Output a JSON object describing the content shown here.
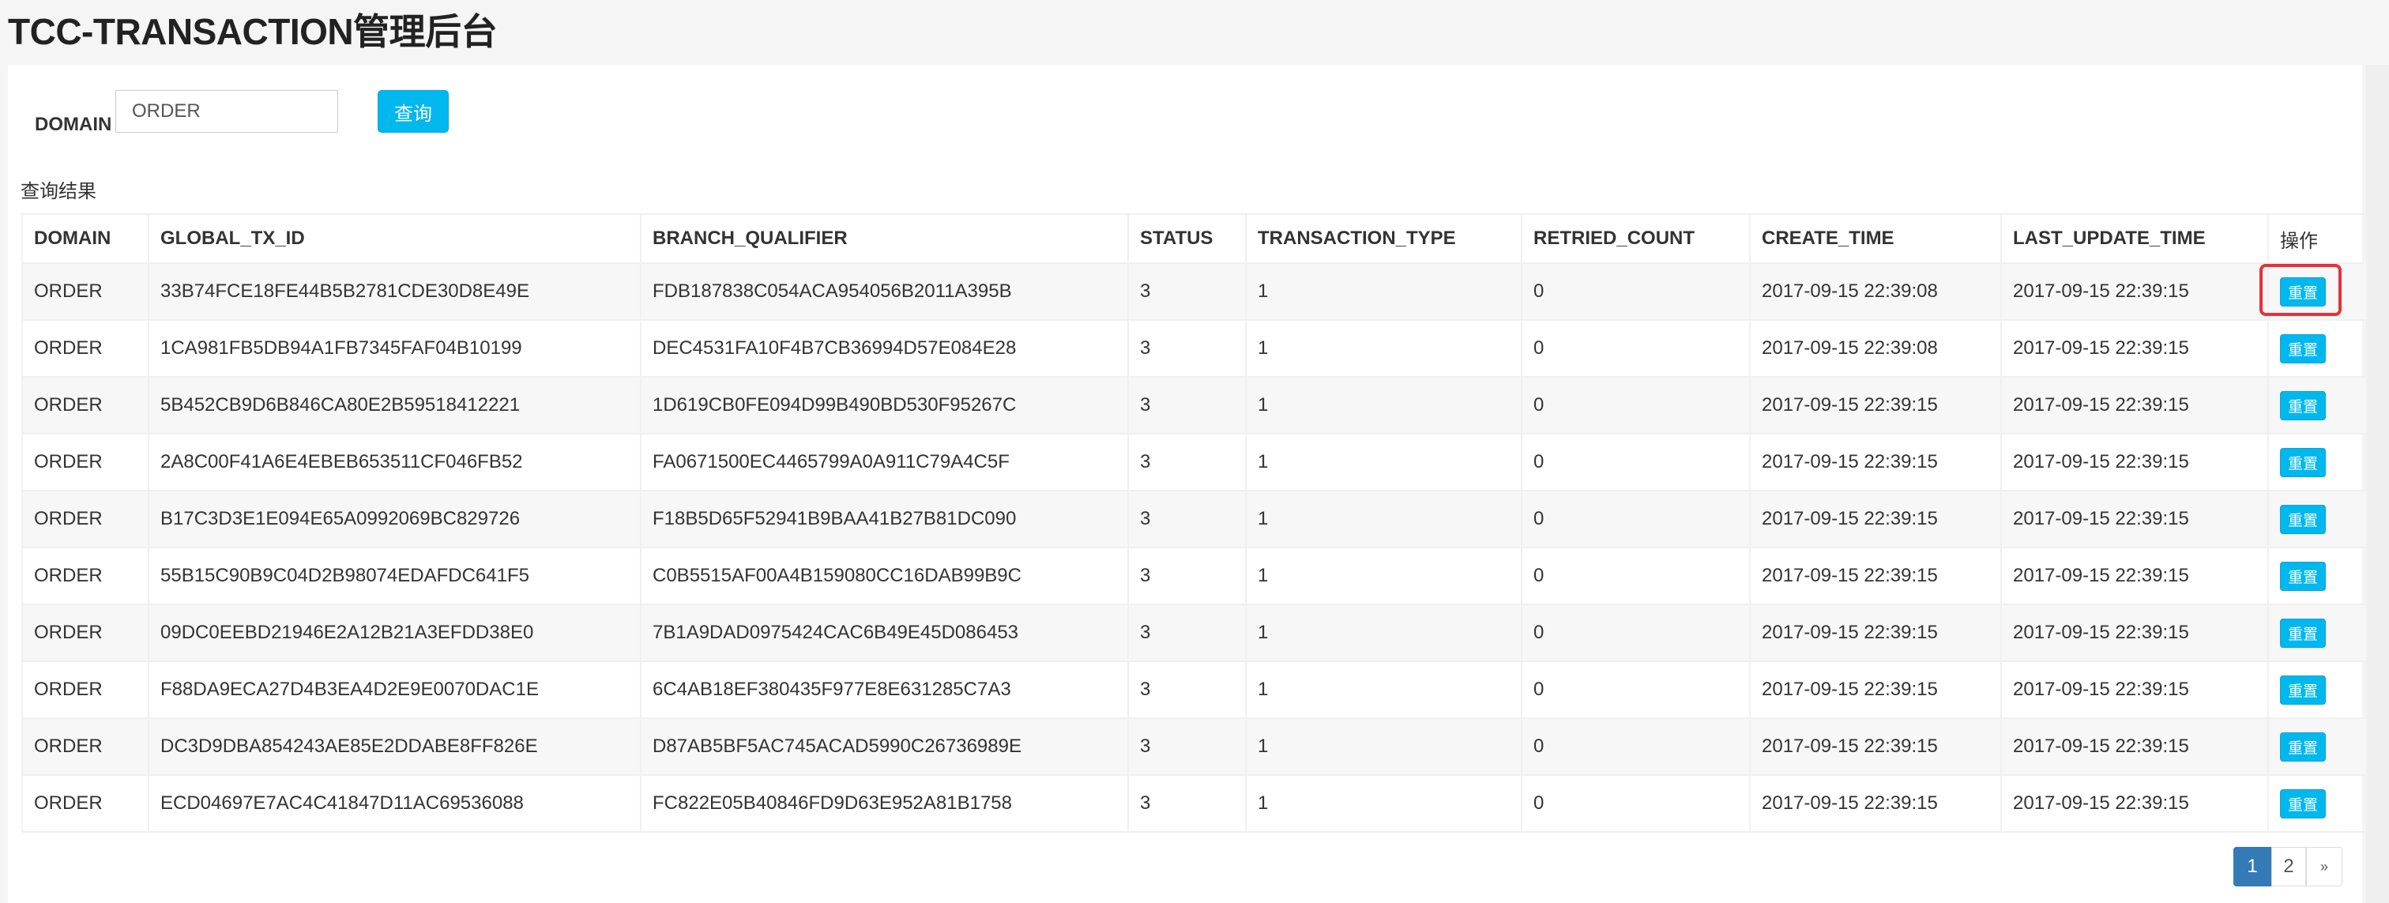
{
  "header": {
    "title": "TCC-TRANSACTION管理后台"
  },
  "search": {
    "label": "DOMAIN",
    "value": "ORDER",
    "button": "查询"
  },
  "results_label": "查询结果",
  "table": {
    "columns": [
      "DOMAIN",
      "GLOBAL_TX_ID",
      "BRANCH_QUALIFIER",
      "STATUS",
      "TRANSACTION_TYPE",
      "RETRIED_COUNT",
      "CREATE_TIME",
      "LAST_UPDATE_TIME",
      "操作"
    ],
    "action_label": "重置",
    "rows": [
      [
        "ORDER",
        "33B74FCE18FE44B5B2781CDE30D8E49E",
        "FDB187838C054ACA954056B2011A395B",
        "3",
        "1",
        "0",
        "2017-09-15 22:39:08",
        "2017-09-15 22:39:15"
      ],
      [
        "ORDER",
        "1CA981FB5DB94A1FB7345FAF04B10199",
        "DEC4531FA10F4B7CB36994D57E084E28",
        "3",
        "1",
        "0",
        "2017-09-15 22:39:08",
        "2017-09-15 22:39:15"
      ],
      [
        "ORDER",
        "5B452CB9D6B846CA80E2B59518412221",
        "1D619CB0FE094D99B490BD530F95267C",
        "3",
        "1",
        "0",
        "2017-09-15 22:39:15",
        "2017-09-15 22:39:15"
      ],
      [
        "ORDER",
        "2A8C00F41A6E4EBEB653511CF046FB52",
        "FA0671500EC4465799A0A911C79A4C5F",
        "3",
        "1",
        "0",
        "2017-09-15 22:39:15",
        "2017-09-15 22:39:15"
      ],
      [
        "ORDER",
        "B17C3D3E1E094E65A0992069BC829726",
        "F18B5D65F52941B9BAA41B27B81DC090",
        "3",
        "1",
        "0",
        "2017-09-15 22:39:15",
        "2017-09-15 22:39:15"
      ],
      [
        "ORDER",
        "55B15C90B9C04D2B98074EDAFDC641F5",
        "C0B5515AF00A4B159080CC16DAB99B9C",
        "3",
        "1",
        "0",
        "2017-09-15 22:39:15",
        "2017-09-15 22:39:15"
      ],
      [
        "ORDER",
        "09DC0EEBD21946E2A12B21A3EFDD38E0",
        "7B1A9DAD0975424CAC6B49E45D086453",
        "3",
        "1",
        "0",
        "2017-09-15 22:39:15",
        "2017-09-15 22:39:15"
      ],
      [
        "ORDER",
        "F88DA9ECA27D4B3EA4D2E9E0070DAC1E",
        "6C4AB18EF380435F977E8E631285C7A3",
        "3",
        "1",
        "0",
        "2017-09-15 22:39:15",
        "2017-09-15 22:39:15"
      ],
      [
        "ORDER",
        "DC3D9DBA854243AE85E2DDABE8FF826E",
        "D87AB5BF5AC745ACAD5990C26736989E",
        "3",
        "1",
        "0",
        "2017-09-15 22:39:15",
        "2017-09-15 22:39:15"
      ],
      [
        "ORDER",
        "ECD04697E7AC4C41847D11AC69536088",
        "FC822E05B40846FD9D63E952A81B1758",
        "3",
        "1",
        "0",
        "2017-09-15 22:39:15",
        "2017-09-15 22:39:15"
      ]
    ]
  },
  "pagination": {
    "pages": [
      "1",
      "2"
    ],
    "current": "1",
    "next": "»"
  },
  "colors": {
    "primary_button": "#00b7ee",
    "page_active": "#337ab7",
    "highlight": "#e8303a"
  }
}
